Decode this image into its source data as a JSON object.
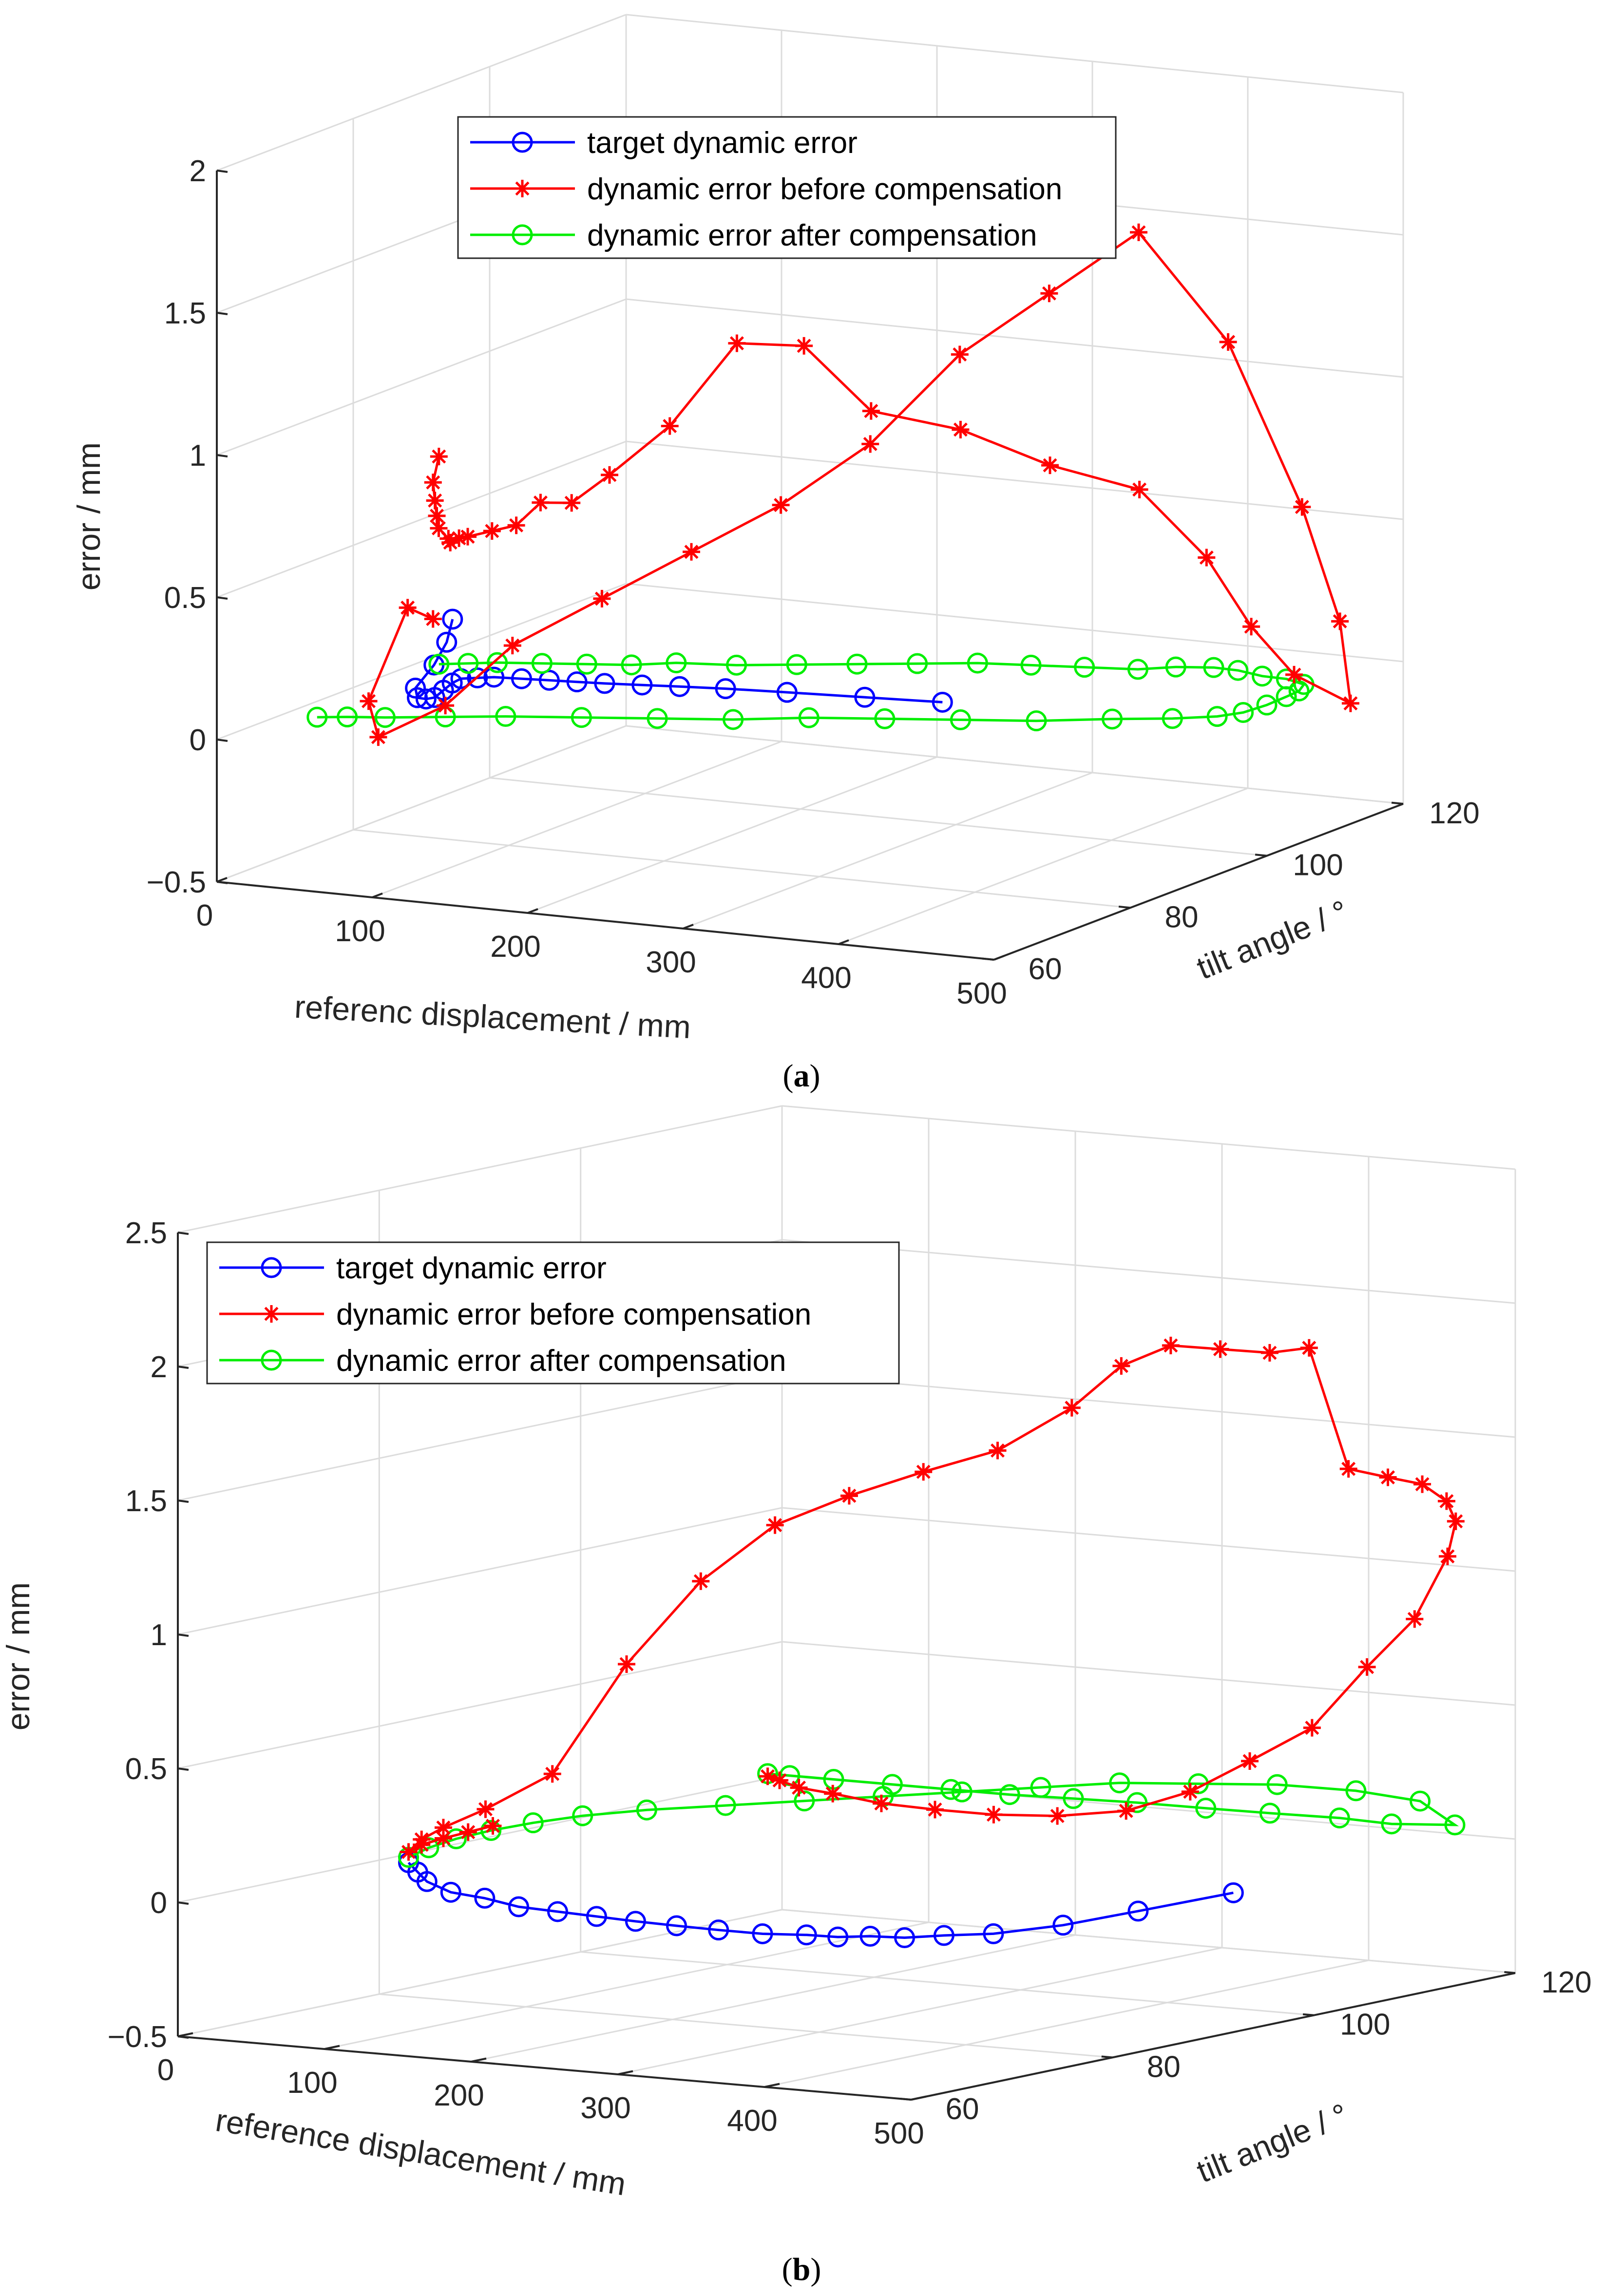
{
  "colors": {
    "target": "#0000ff",
    "before": "#ff0000",
    "after": "#00ee00",
    "axis": "#262626",
    "grid": "#dcdcdc"
  },
  "chart_data": [
    {
      "type": "line3d",
      "caption": "a",
      "xlabel": "referenc displacement / mm",
      "ylabel": "tilt angle  / °",
      "zlabel": "error / mm",
      "xlim": [
        0,
        500
      ],
      "ylim": [
        60,
        120
      ],
      "zlim": [
        -0.5,
        2
      ],
      "x_ticks": [
        "0",
        "100",
        "200",
        "300",
        "400",
        "500"
      ],
      "y_ticks": [
        "60",
        "80",
        "100",
        "120"
      ],
      "z_ticks": [
        "−0.5",
        "0",
        "0.5",
        "1",
        "1.5",
        "2"
      ],
      "legend": [
        "target dynamic error",
        "dynamic error before compensation",
        "dynamic error after compensation"
      ],
      "series": [
        {
          "name": "target dynamic error",
          "marker": "circle",
          "x": [
            20,
            25,
            30,
            40,
            50,
            60,
            70,
            80,
            90,
            100,
            115,
            130,
            150,
            170,
            190,
            210,
            235,
            260,
            290,
            330,
            380,
            430
          ],
          "y": [
            90,
            88,
            85,
            80,
            78,
            77,
            76,
            75,
            74,
            73,
            72,
            71,
            70.5,
            70,
            69.5,
            69,
            68.8,
            68.6,
            68.5,
            68.4,
            68.4,
            68.4
          ],
          "z": [
            0.16,
            0.1,
            0.05,
            0.02,
            0.01,
            0.02,
            0.04,
            0.08,
            0.12,
            0.15,
            0.17,
            0.19,
            0.2,
            0.21,
            0.22,
            0.23,
            0.24,
            0.25,
            0.26,
            0.27,
            0.28,
            0.29
          ]
        },
        {
          "name": "dynamic error before compensation",
          "marker": "star",
          "x": [
            20,
            25,
            35,
            45,
            55,
            70,
            80,
            90,
            100,
            120,
            140,
            160,
            180,
            200,
            230,
            260,
            290,
            320,
            360,
            400,
            440,
            470,
            490,
            500,
            510,
            490,
            470,
            440,
            400,
            360,
            320,
            280,
            240,
            200,
            160,
            120,
            90,
            60,
            45,
            35,
            25
          ],
          "y": [
            88,
            86,
            84,
            82,
            80,
            78,
            76,
            75,
            74,
            73,
            72,
            71,
            71,
            72,
            74,
            77,
            80,
            83,
            87,
            91,
            95,
            98,
            100,
            104,
            110,
            113,
            112,
            108,
            104,
            100,
            96,
            92,
            88,
            84,
            80,
            76,
            73,
            70,
            72,
            80,
            86
          ],
          "z": [
            0.75,
            0.68,
            0.64,
            0.61,
            0.59,
            0.58,
            0.59,
            0.62,
            0.64,
            0.68,
            0.72,
            0.82,
            0.83,
            0.93,
            1.1,
            1.38,
            1.36,
            1.12,
            1.04,
            0.9,
            0.8,
            0.55,
            0.3,
            0.1,
            -0.05,
            0.2,
            0.6,
            1.2,
            1.6,
            1.4,
            1.2,
            0.9,
            0.7,
            0.55,
            0.4,
            0.25,
            0.05,
            -0.05,
            0.05,
            0.3,
            0.2
          ]
        },
        {
          "name": "dynamic error after compensation",
          "marker": "circle",
          "x": [
            20,
            30,
            40,
            60,
            80,
            100,
            120,
            150,
            180,
            210,
            240,
            270,
            300,
            330,
            360,
            380,
            400,
            420,
            440,
            460,
            480,
            490,
            495,
            500,
            498,
            490,
            470,
            440,
            400,
            360,
            320,
            280,
            240,
            200,
            160,
            120,
            90,
            60,
            40,
            25
          ],
          "y": [
            88,
            90,
            92,
            94,
            96,
            98,
            100,
            102,
            104,
            106,
            108,
            110,
            111,
            112,
            113,
            114,
            115,
            114,
            113,
            112,
            110,
            107,
            104,
            100,
            97,
            95,
            93,
            91,
            89,
            87,
            85,
            83,
            81,
            79,
            77,
            75,
            73,
            71,
            70,
            69
          ],
          "z": [
            0.02,
            0.01,
            0.0,
            -0.01,
            -0.02,
            -0.03,
            -0.03,
            -0.04,
            -0.04,
            -0.04,
            -0.04,
            -0.04,
            -0.04,
            -0.04,
            -0.04,
            -0.03,
            -0.03,
            -0.02,
            -0.02,
            -0.01,
            0.0,
            0.01,
            0.02,
            0.03,
            0.03,
            0.03,
            0.03,
            0.03,
            0.02,
            0.02,
            0.02,
            0.02,
            0.01,
            0.01,
            0.01,
            0.01,
            0.01,
            0.01,
            0.01,
            0.01
          ]
        }
      ]
    },
    {
      "type": "line3d",
      "caption": "b",
      "xlabel": "reference displacement / mm",
      "ylabel": "tilt angle / °",
      "zlabel": "error / mm",
      "xlim": [
        0,
        500
      ],
      "ylim": [
        60,
        120
      ],
      "zlim": [
        -0.5,
        2.5
      ],
      "x_ticks": [
        "0",
        "100",
        "200",
        "300",
        "400",
        "500"
      ],
      "y_ticks": [
        "60",
        "80",
        "100",
        "120"
      ],
      "z_ticks": [
        "−0.5",
        "0",
        "0.5",
        "1",
        "1.5",
        "2",
        "2.5"
      ],
      "legend": [
        "target dynamic error",
        "dynamic error before compensation",
        "dynamic error after compensation"
      ],
      "series": [
        {
          "name": "target dynamic error",
          "marker": "circle",
          "x": [
            20,
            40,
            60,
            90,
            120,
            150,
            180,
            210,
            240,
            270,
            300,
            330,
            360,
            380,
            400,
            420,
            440,
            460,
            480,
            490,
            500
          ],
          "y": [
            80,
            78,
            76,
            74,
            73,
            72,
            71.5,
            71,
            70.5,
            70.2,
            70,
            70,
            70,
            70.2,
            70.5,
            71,
            72,
            74,
            78,
            84,
            92
          ],
          "z": [
            0.0,
            -0.01,
            -0.02,
            -0.03,
            -0.03,
            -0.04,
            -0.04,
            -0.04,
            -0.04,
            -0.04,
            -0.04,
            -0.04,
            -0.03,
            -0.03,
            -0.02,
            -0.02,
            -0.01,
            -0.01,
            0.0,
            0.01,
            0.02
          ]
        },
        {
          "name": "dynamic error before compensation",
          "marker": "star",
          "x": [
            50,
            40,
            30,
            22,
            20,
            22,
            30,
            45,
            70,
            100,
            130,
            160,
            190,
            220,
            250,
            280,
            300,
            320,
            340,
            360,
            380,
            400,
            420,
            440,
            460,
            480,
            495,
            500,
            495,
            485,
            470,
            450,
            420,
            380,
            340,
            300,
            260,
            220,
            190,
            170,
            155
          ],
          "y": [
            84,
            83,
            82,
            81,
            80,
            81,
            82,
            84,
            87,
            90,
            93,
            96,
            99,
            102,
            105,
            108,
            110,
            112,
            114,
            116,
            117,
            118,
            119,
            119.5,
            119,
            117,
            114,
            110,
            106,
            102,
            98,
            95,
            93,
            92,
            91.5,
            91.5,
            92,
            93,
            94,
            95,
            96
          ],
          "z": [
            0.12,
            0.1,
            0.08,
            0.06,
            0.04,
            0.08,
            0.12,
            0.18,
            0.3,
            0.7,
            1.0,
            1.2,
            1.3,
            1.38,
            1.45,
            1.6,
            1.75,
            1.82,
            1.8,
            1.78,
            1.8,
            1.35,
            1.32,
            1.3,
            1.25,
            1.2,
            1.1,
            0.9,
            0.75,
            0.55,
            0.45,
            0.35,
            0.28,
            0.25,
            0.24,
            0.24,
            0.24,
            0.25,
            0.25,
            0.26,
            0.26
          ]
        },
        {
          "name": "dynamic error after compensation",
          "marker": "circle",
          "x": [
            20,
            20,
            25,
            35,
            50,
            70,
            100,
            140,
            180,
            220,
            260,
            300,
            340,
            380,
            420,
            460,
            490,
            500,
            498,
            490,
            470,
            440,
            400,
            360,
            320,
            280,
            240,
            200,
            170,
            155
          ],
          "y": [
            80,
            82,
            84,
            86,
            88,
            90,
            92,
            94,
            96,
            98,
            100,
            102,
            104,
            106,
            108,
            110,
            112,
            114,
            108,
            104,
            100,
            98,
            97,
            96.5,
            96,
            96,
            96,
            96,
            96,
            96
          ],
          "z": [
            0.02,
            0.04,
            0.06,
            0.08,
            0.1,
            0.12,
            0.14,
            0.16,
            0.18,
            0.2,
            0.22,
            0.24,
            0.26,
            0.26,
            0.26,
            0.24,
            0.2,
            0.1,
            0.15,
            0.2,
            0.24,
            0.26,
            0.27,
            0.27,
            0.27,
            0.27,
            0.27,
            0.27,
            0.27,
            0.27
          ]
        }
      ]
    }
  ]
}
